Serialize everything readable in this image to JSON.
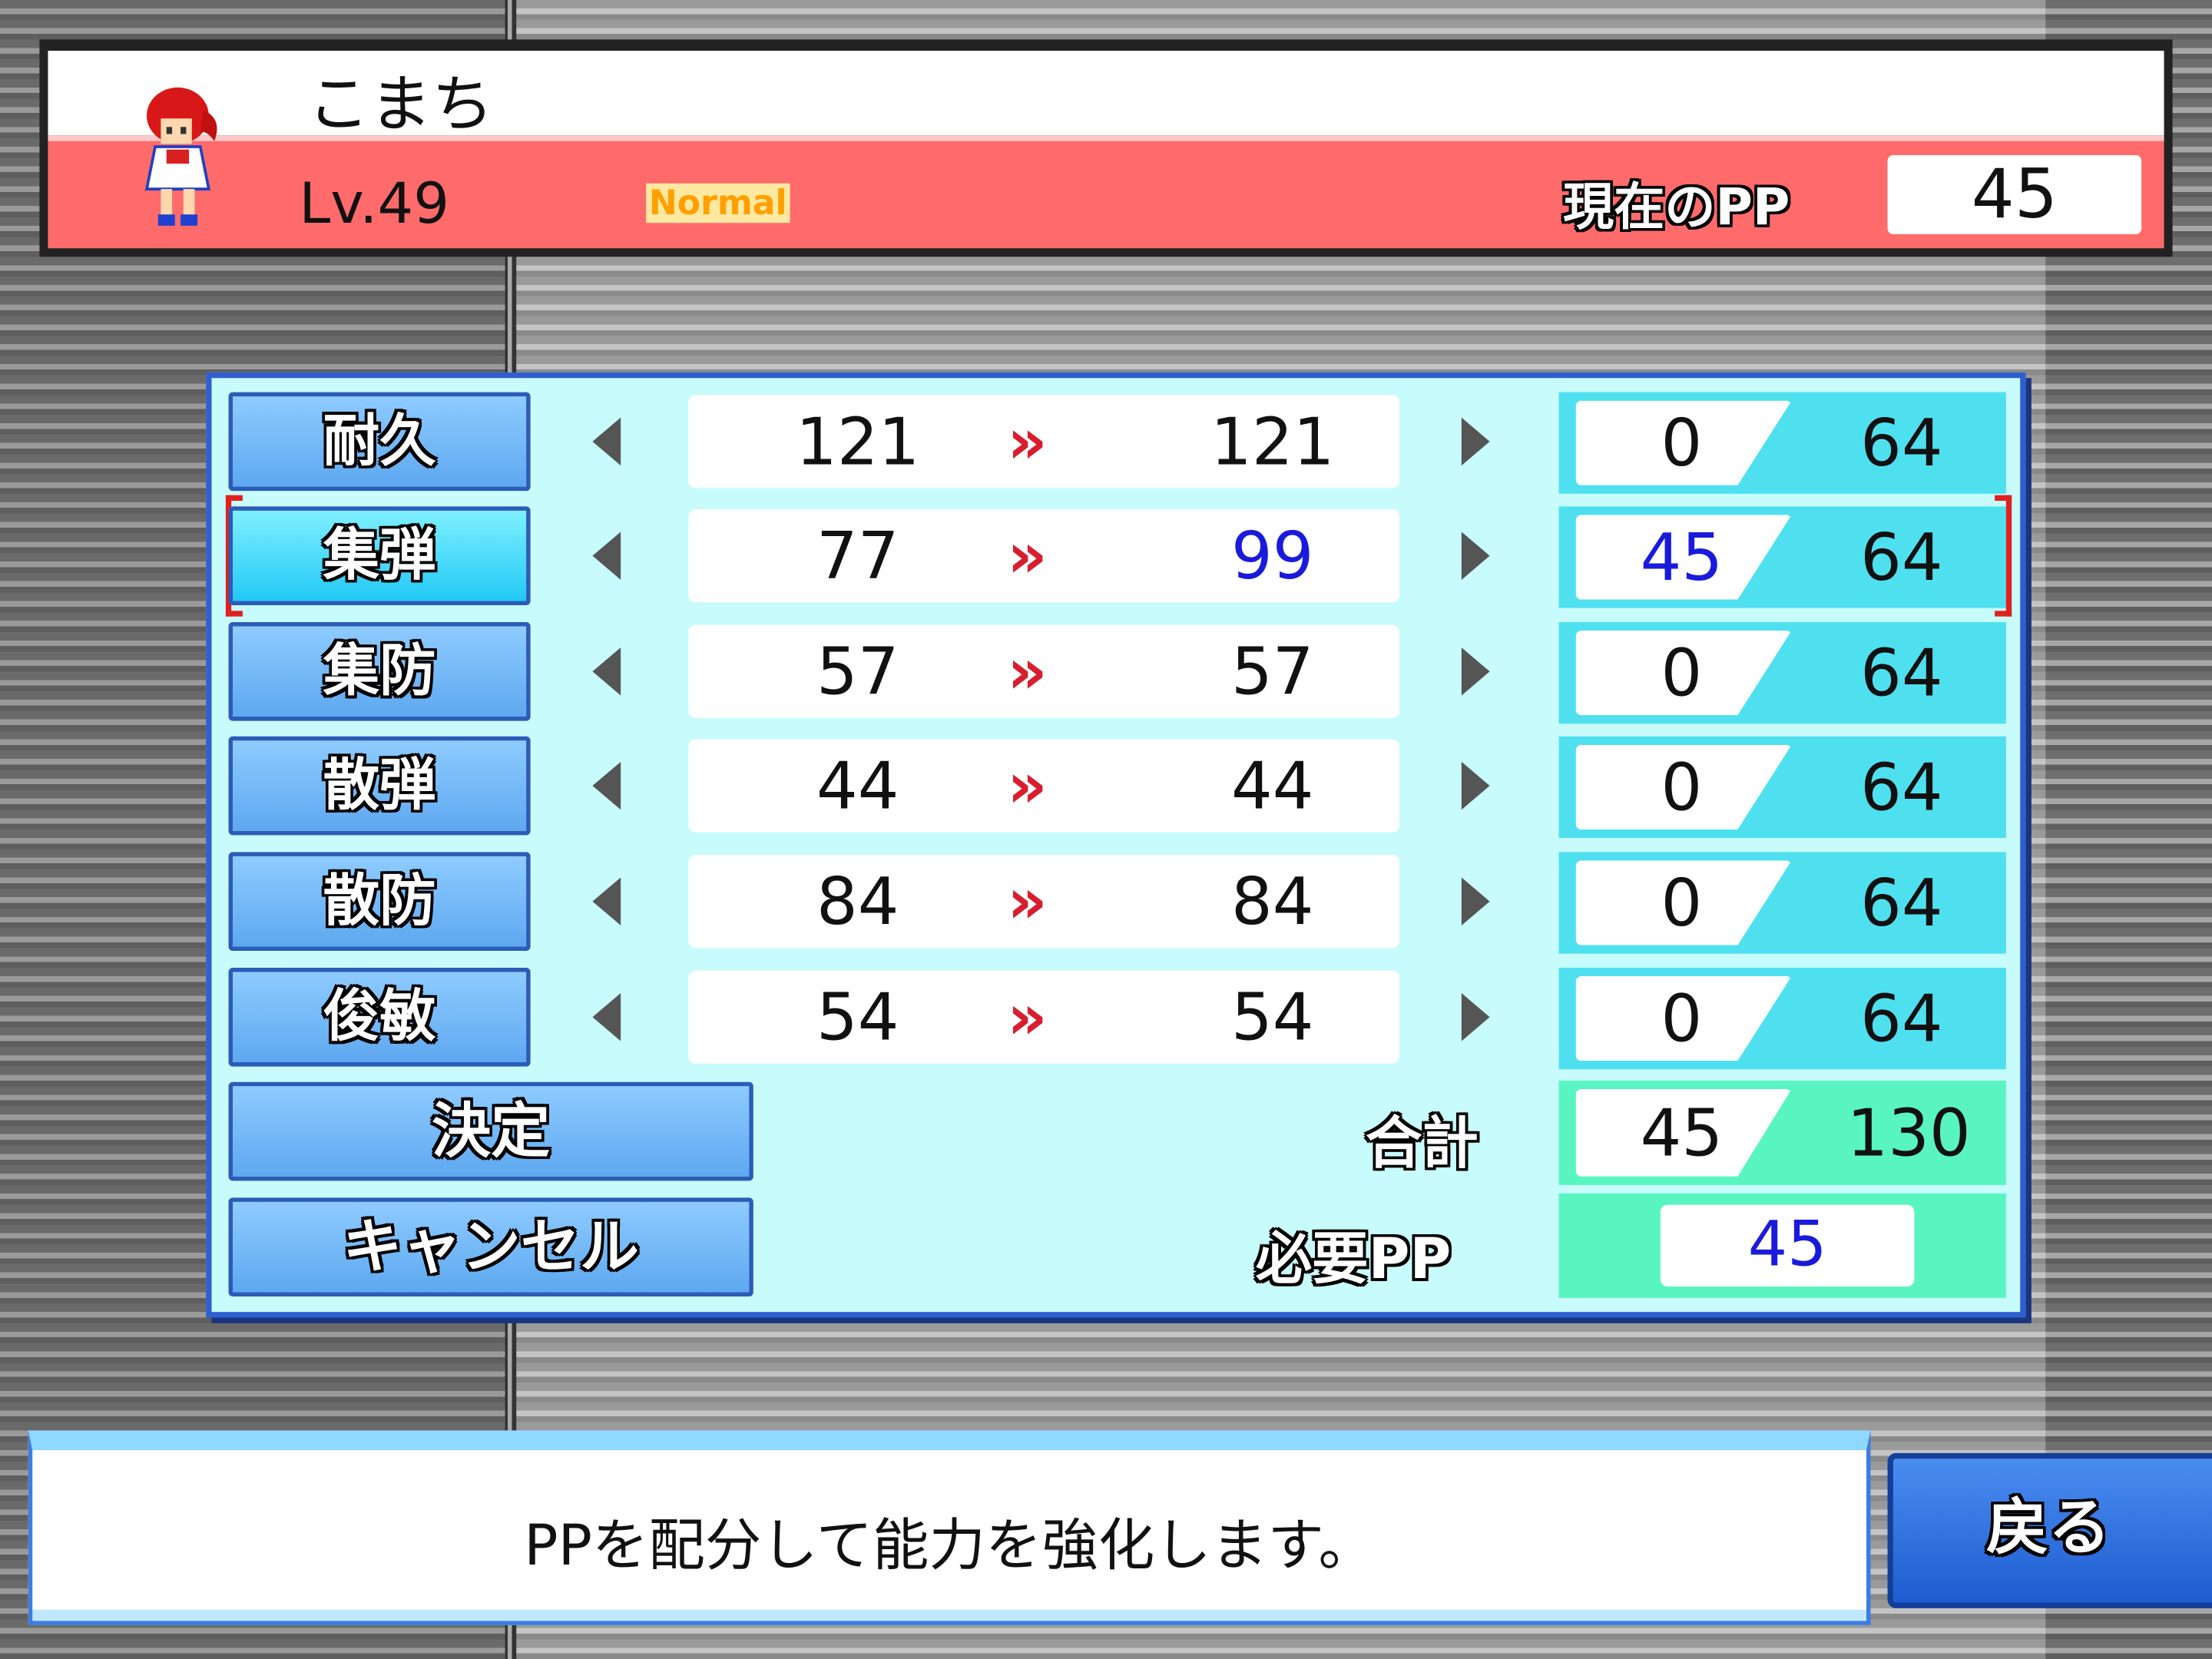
{
  "character": {
    "name": "こまち",
    "level": "Lv.49",
    "difficulty": "Normal",
    "current_pp_label": "現在のPP",
    "current_pp": "45"
  },
  "stats": [
    {
      "label": "耐久",
      "before": "121",
      "after": "121",
      "allocated": "0",
      "max": "64",
      "selected": false
    },
    {
      "label": "集弾",
      "before": "77",
      "after": "99",
      "allocated": "45",
      "max": "64",
      "selected": true
    },
    {
      "label": "集防",
      "before": "57",
      "after": "57",
      "allocated": "0",
      "max": "64",
      "selected": false
    },
    {
      "label": "散弾",
      "before": "44",
      "after": "44",
      "allocated": "0",
      "max": "64",
      "selected": false
    },
    {
      "label": "散防",
      "before": "84",
      "after": "84",
      "allocated": "0",
      "max": "64",
      "selected": false
    },
    {
      "label": "俊敏",
      "before": "54",
      "after": "54",
      "allocated": "0",
      "max": "64",
      "selected": false
    }
  ],
  "arrow_glyph": "»",
  "buttons": {
    "confirm": "決定",
    "cancel": "キャンセル",
    "back": "戻る"
  },
  "total": {
    "label": "合計",
    "allocated": "45",
    "max": "130"
  },
  "required": {
    "label": "必要PP",
    "value": "45"
  },
  "message": "PPを配分して能力を強化します。",
  "colors": {
    "header_red": "#ff6b6b",
    "panel_bg": "#c8fbfb",
    "panel_border": "#2f5fcf",
    "increased_value": "#1a1adc",
    "arrow_red": "#d81e2e",
    "selection_bracket": "#e02020"
  }
}
